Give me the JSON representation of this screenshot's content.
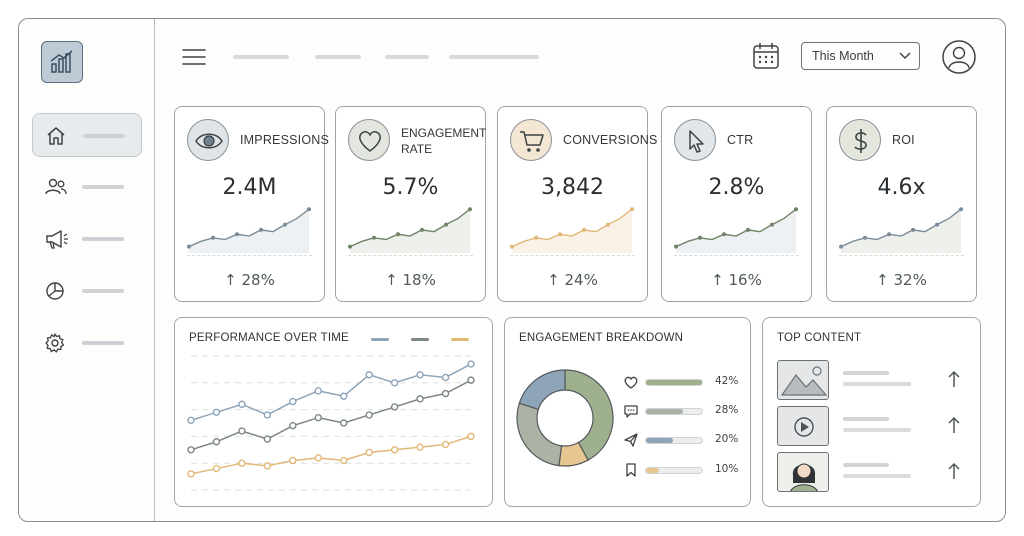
{
  "header": {
    "period_selector": {
      "selected": "This Month"
    }
  },
  "kpis": [
    {
      "label": "IMPRESSIONS",
      "value": "2.4M",
      "change": "↑ 28%",
      "icon": "eye-icon",
      "accent": "#9fb1bf"
    },
    {
      "label": "ENGAGEMENT",
      "label2": "RATE",
      "value": "5.7%",
      "change": "↑ 18%",
      "icon": "heart-icon",
      "accent": "#9fb08f"
    },
    {
      "label": "CONVERSIONS",
      "value": "3,842",
      "change": "↑ 24%",
      "icon": "cart-icon",
      "accent": "#e1b877"
    },
    {
      "label": "CTR",
      "value": "2.8%",
      "change": "↑ 16%",
      "icon": "cursor-icon",
      "accent": "#9fb1bf"
    },
    {
      "label": "ROI",
      "value": "4.6x",
      "change": "↑ 32%",
      "icon": "dollar-icon",
      "accent": "#9fb08f"
    }
  ],
  "panels": {
    "performance": {
      "title": "PERFORMANCE OVER TIME"
    },
    "breakdown": {
      "title": "ENGAGEMENT BREAKDOWN",
      "items": [
        {
          "icon": "heart-icon",
          "pct": "42%",
          "value": 42,
          "color": "#9fb08f"
        },
        {
          "icon": "comment-icon",
          "pct": "28%",
          "value": 28,
          "color": "#aab3a5"
        },
        {
          "icon": "send-icon",
          "pct": "20%",
          "value": 20,
          "color": "#8ea4b8"
        },
        {
          "icon": "bookmark-icon",
          "pct": "10%",
          "value": 10,
          "color": "#e7c692"
        }
      ]
    },
    "top_content": {
      "title": "TOP CONTENT",
      "items": [
        {
          "thumb": "image-thumbnail-icon"
        },
        {
          "thumb": "video-play-icon"
        },
        {
          "thumb": "person-portrait-icon"
        }
      ]
    }
  },
  "chart_data": {
    "type": "line",
    "x": [
      1,
      2,
      3,
      4,
      5,
      6,
      7,
      8,
      9,
      10,
      11,
      12
    ],
    "series": [
      {
        "values": [
          52,
          58,
          64,
          56,
          66,
          74,
          70,
          86,
          80,
          86,
          84,
          94
        ],
        "color": "#8ea4b8"
      },
      {
        "values": [
          30,
          36,
          44,
          38,
          48,
          54,
          50,
          56,
          62,
          68,
          72,
          82
        ],
        "color": "#7c8689"
      },
      {
        "values": [
          12,
          16,
          20,
          18,
          22,
          24,
          22,
          28,
          30,
          32,
          34,
          40
        ],
        "color": "#e1b877"
      }
    ],
    "ylim": [
      0,
      100
    ],
    "grid": true,
    "legend": "top-right"
  }
}
